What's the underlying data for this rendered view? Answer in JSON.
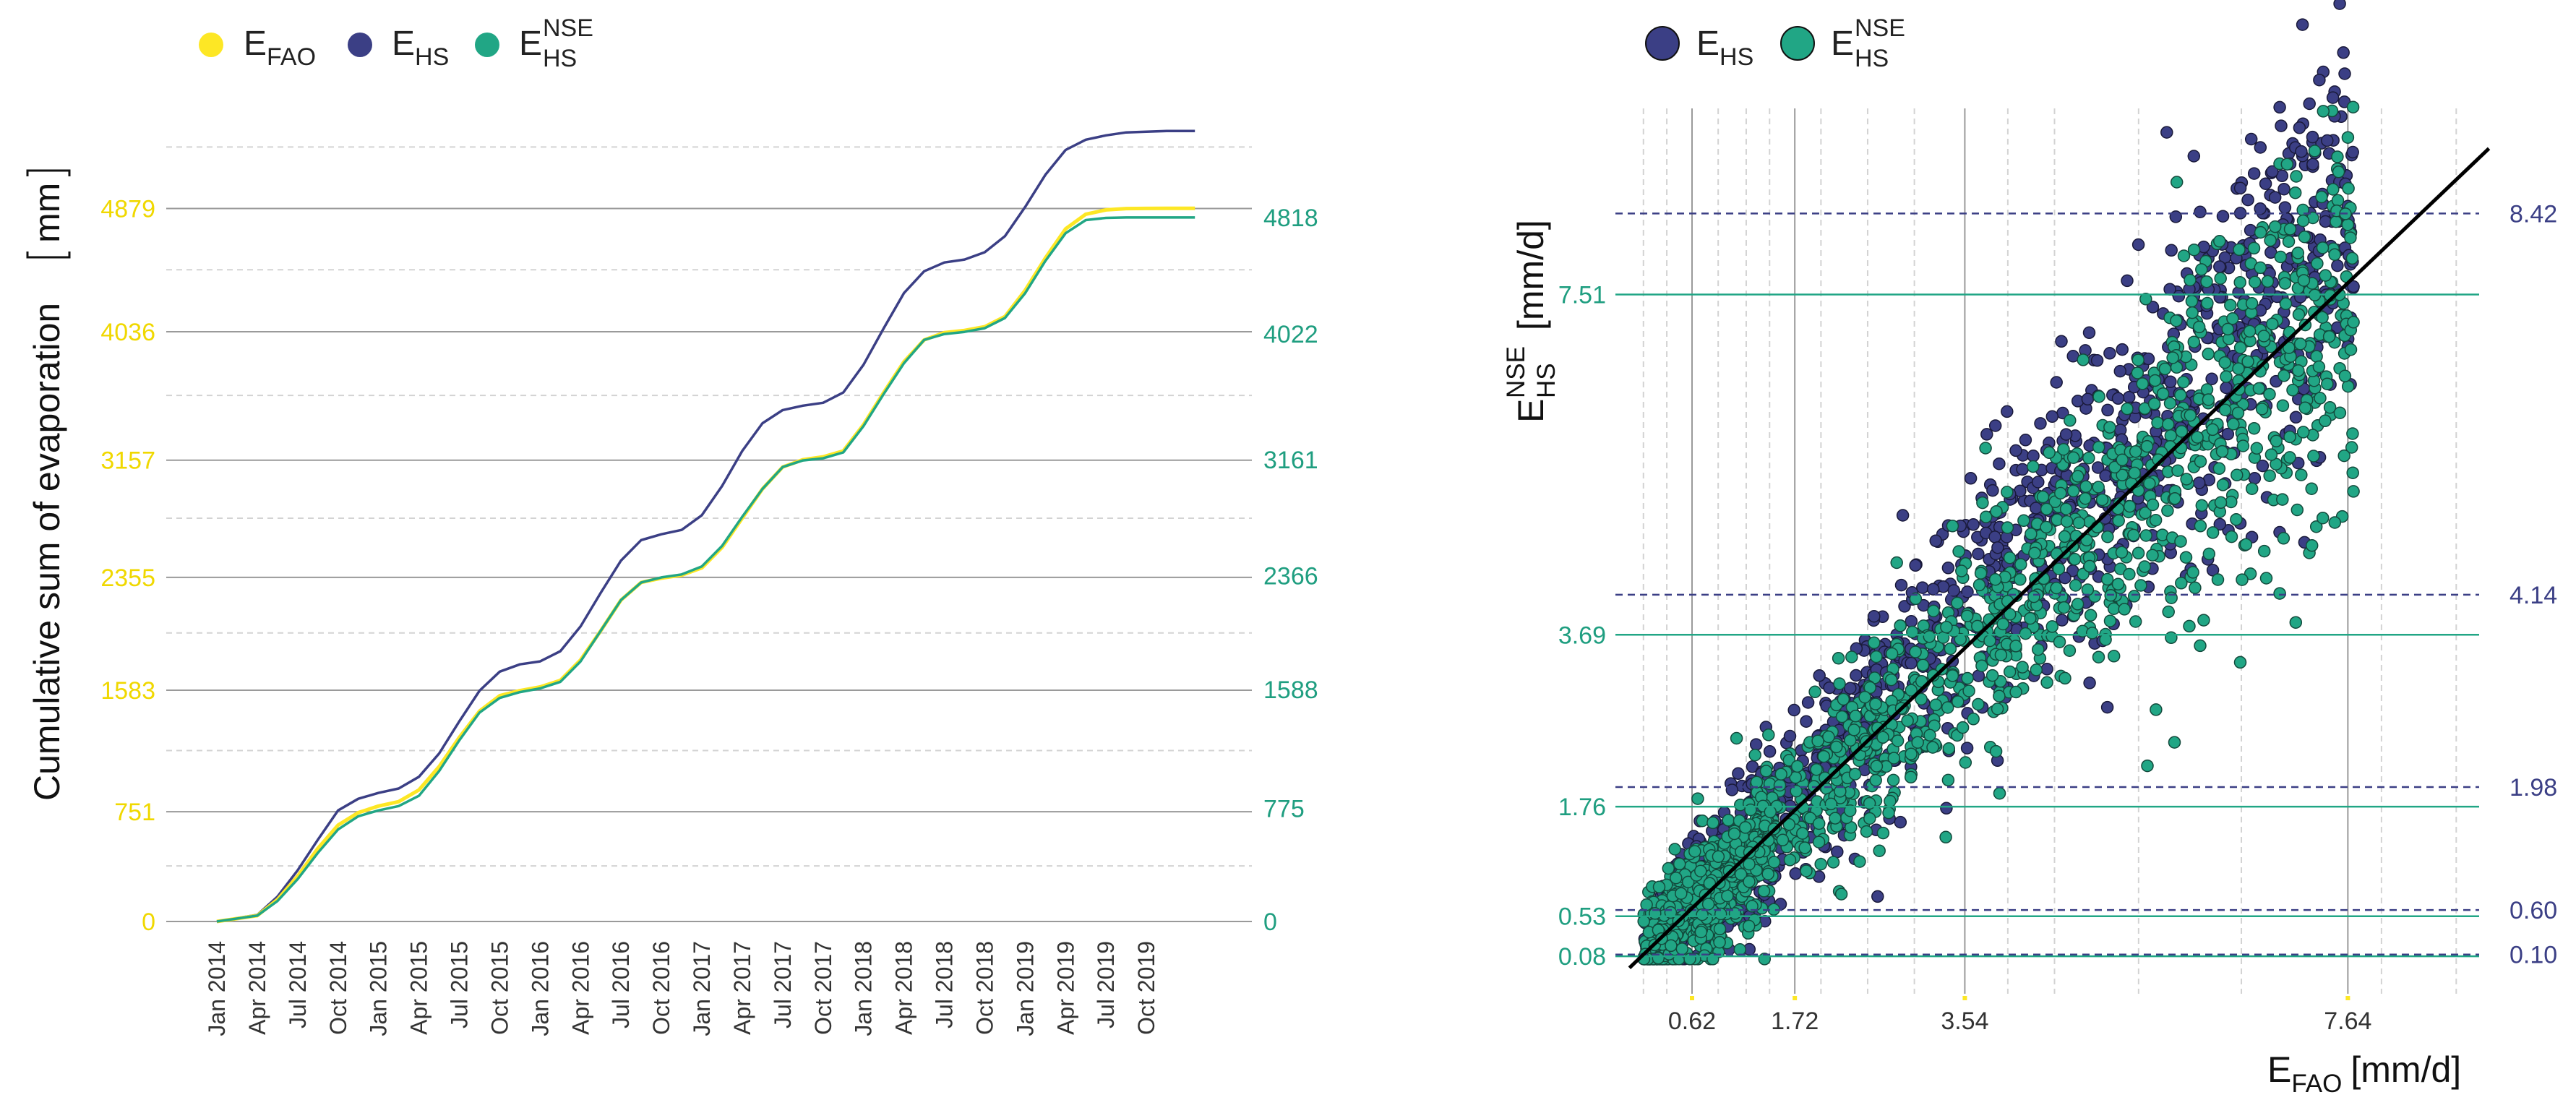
{
  "colors": {
    "fao": "#fde725",
    "hs": "#3b3f85",
    "nse": "#21a685",
    "nse_text": "#1f9e80",
    "fao_text": "#f0d800",
    "grid_major": "#9a9a9a",
    "grid_minor": "#d3d3d3",
    "diag": "#000000"
  },
  "chart_data": [
    {
      "type": "line",
      "title": "",
      "ylabel": "Cumulative sum of evaporation",
      "ylabel_unit": "mm",
      "xlabel": "",
      "legend": {
        "placement": "top-left",
        "entries": [
          {
            "key": "fao",
            "base": "E",
            "sub": "FAO",
            "sup": ""
          },
          {
            "key": "hs",
            "base": "E",
            "sub": "HS",
            "sup": ""
          },
          {
            "key": "nse",
            "base": "E",
            "sub": "HS",
            "sup": "NSE"
          }
        ]
      },
      "x_ticks": [
        "Jan 2014",
        "Apr 2014",
        "Jul 2014",
        "Oct 2014",
        "Jan 2015",
        "Apr 2015",
        "Jul 2015",
        "Oct 2015",
        "Jan 2016",
        "Apr 2016",
        "Jul 2016",
        "Oct 2016",
        "Jan 2017",
        "Apr 2017",
        "Jul 2017",
        "Oct 2017",
        "Jan 2018",
        "Apr 2018",
        "Jul 2018",
        "Oct 2018",
        "Jan 2019",
        "Apr 2019",
        "Jul 2019",
        "Oct 2019"
      ],
      "x_range": [
        0,
        24.5
      ],
      "ylim": [
        0,
        5500
      ],
      "y_ticks_left": [
        {
          "label": "0",
          "value": 0
        },
        {
          "label": "751",
          "value": 751
        },
        {
          "label": "1583",
          "value": 1583
        },
        {
          "label": "2355",
          "value": 2355
        },
        {
          "label": "3157",
          "value": 3157
        },
        {
          "label": "4036",
          "value": 4036
        },
        {
          "label": "4879",
          "value": 4879
        }
      ],
      "y_ticks_right": [
        {
          "label": "0",
          "value": 0
        },
        {
          "label": "775",
          "value": 775
        },
        {
          "label": "1588",
          "value": 1588
        },
        {
          "label": "2366",
          "value": 2366
        },
        {
          "label": "3161",
          "value": 3161
        },
        {
          "label": "4022",
          "value": 4022
        },
        {
          "label": "4818",
          "value": 4818
        }
      ],
      "minor_grid": [
        380,
        1170,
        1975,
        2760,
        3600,
        4460,
        5300
      ],
      "series": [
        {
          "name": "fao",
          "x": [
            0,
            1,
            1.5,
            2,
            2.5,
            3,
            3.5,
            4,
            4.5,
            5,
            5.5,
            6,
            6.5,
            7,
            7.5,
            8,
            8.5,
            9,
            9.5,
            10,
            10.5,
            11,
            11.5,
            12,
            12.5,
            13,
            13.5,
            14,
            14.5,
            15,
            15.5,
            16,
            16.5,
            17,
            17.5,
            18,
            18.5,
            19,
            19.5,
            20,
            20.5,
            21,
            21.5,
            22,
            22.5,
            23,
            23.5,
            24,
            24.2
          ],
          "values": [
            0,
            40,
            150,
            310,
            500,
            660,
            745,
            790,
            820,
            900,
            1060,
            1260,
            1440,
            1545,
            1580,
            1605,
            1650,
            1790,
            1990,
            2200,
            2320,
            2350,
            2370,
            2420,
            2560,
            2760,
            2960,
            3110,
            3160,
            3180,
            3220,
            3400,
            3620,
            3830,
            3980,
            4030,
            4045,
            4070,
            4140,
            4320,
            4540,
            4740,
            4840,
            4870,
            4879,
            4880,
            4881,
            4881,
            4881
          ]
        },
        {
          "name": "hs",
          "x": [
            0,
            1,
            1.5,
            2,
            2.5,
            3,
            3.5,
            4,
            4.5,
            5,
            5.5,
            6,
            6.5,
            7,
            7.5,
            8,
            8.5,
            9,
            9.5,
            10,
            10.5,
            11,
            11.5,
            12,
            12.5,
            13,
            13.5,
            14,
            14.5,
            15,
            15.5,
            16,
            16.5,
            17,
            17.5,
            18,
            18.5,
            19,
            19.5,
            20,
            20.5,
            21,
            21.5,
            22,
            22.5,
            23,
            23.5,
            24,
            24.2
          ],
          "values": [
            0,
            45,
            170,
            350,
            560,
            760,
            840,
            880,
            910,
            990,
            1150,
            1370,
            1580,
            1710,
            1760,
            1780,
            1850,
            2020,
            2250,
            2470,
            2610,
            2650,
            2680,
            2780,
            2980,
            3220,
            3410,
            3500,
            3530,
            3550,
            3620,
            3810,
            4060,
            4300,
            4450,
            4510,
            4530,
            4580,
            4690,
            4890,
            5110,
            5280,
            5350,
            5380,
            5400,
            5405,
            5410,
            5410,
            5410
          ]
        },
        {
          "name": "nse",
          "x": [
            0,
            1,
            1.5,
            2,
            2.5,
            3,
            3.5,
            4,
            4.5,
            5,
            5.5,
            6,
            6.5,
            7,
            7.5,
            8,
            8.5,
            9,
            9.5,
            10,
            10.5,
            11,
            11.5,
            12,
            12.5,
            13,
            13.5,
            14,
            14.5,
            15,
            15.5,
            16,
            16.5,
            17,
            17.5,
            18,
            18.5,
            19,
            19.5,
            20,
            20.5,
            21,
            21.5,
            22,
            22.5,
            23,
            23.5,
            24,
            24.2
          ],
          "values": [
            0,
            40,
            140,
            290,
            470,
            630,
            720,
            760,
            790,
            860,
            1030,
            1240,
            1430,
            1530,
            1570,
            1595,
            1640,
            1780,
            1990,
            2200,
            2320,
            2355,
            2375,
            2430,
            2570,
            2770,
            2960,
            3110,
            3155,
            3170,
            3210,
            3390,
            3610,
            3820,
            3980,
            4020,
            4035,
            4060,
            4130,
            4300,
            4520,
            4710,
            4800,
            4815,
            4818,
            4818,
            4818,
            4818,
            4818
          ]
        }
      ]
    },
    {
      "type": "scatter",
      "title": "",
      "xlabel": {
        "base": "E",
        "sub": "FAO",
        "unit": "[mm/d]"
      },
      "ylabel": {
        "base": "E",
        "sub": "HS",
        "sup": "NSE",
        "unit": "[mm/d]"
      },
      "xlim": [
        -0.2,
        9.2
      ],
      "ylim": [
        -0.3,
        9.6
      ],
      "legend": {
        "placement": "top",
        "entries": [
          {
            "key": "hs",
            "base": "E",
            "sub": "HS",
            "sup": ""
          },
          {
            "key": "nse",
            "base": "E",
            "sub": "HS",
            "sup": "NSE"
          }
        ]
      },
      "x_ticks": [
        {
          "label": "0.62",
          "value": 0.62
        },
        {
          "label": "1.72",
          "value": 1.72
        },
        {
          "label": "3.54",
          "value": 3.54
        },
        {
          "label": "7.64",
          "value": 7.64
        }
      ],
      "y_ticks_left": [
        {
          "label": "0.08",
          "value": 0.08
        },
        {
          "label": "0.53",
          "value": 0.53
        },
        {
          "label": "1.76",
          "value": 1.76
        },
        {
          "label": "3.69",
          "value": 3.69
        },
        {
          "label": "7.51",
          "value": 7.51
        }
      ],
      "y_ticks_right": [
        {
          "label": "0.10",
          "value": 0.1
        },
        {
          "label": "0.60",
          "value": 0.6
        },
        {
          "label": "1.98",
          "value": 1.98
        },
        {
          "label": "4.14",
          "value": 4.14
        },
        {
          "label": "8.42",
          "value": 8.42
        }
      ],
      "x_minor_grid": [
        0.1,
        0.35,
        0.9,
        1.2,
        1.45,
        2.0,
        2.5,
        3.0,
        4.0,
        4.5,
        5.4,
        6.5,
        8.0,
        8.8
      ],
      "identity_line": true,
      "point_generation": {
        "n": 1500,
        "x_mean": 3.2,
        "hs_slope": 1.1,
        "nse_slope": 0.98,
        "x_max": 7.7
      },
      "series": [
        {
          "name": "hs",
          "x": [
            7.5,
            7.65,
            7.7,
            6.8,
            5.9
          ],
          "values": [
            8.42,
            7.95,
            7.6,
            7.55,
            6.3
          ]
        },
        {
          "name": "nse",
          "x": [
            7.45,
            7.7,
            7.7,
            7.6,
            7.5
          ],
          "values": [
            7.5,
            7.2,
            5.3,
            5.7,
            4.95
          ]
        }
      ]
    }
  ]
}
